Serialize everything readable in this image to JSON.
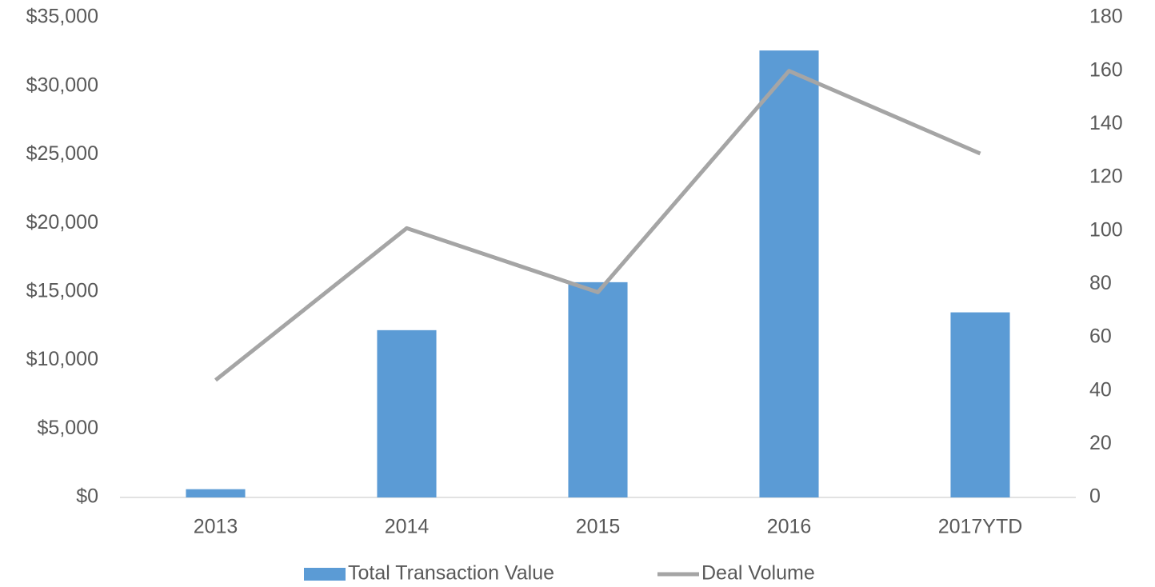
{
  "chart_data": {
    "type": "bar_line",
    "categories": [
      "2013",
      "2014",
      "2015",
      "2016",
      "2017YTD"
    ],
    "series": [
      {
        "name": "Total Transaction Value",
        "type": "bar",
        "color": "#5b9bd5",
        "values": [
          600,
          12200,
          15700,
          32600,
          13500
        ]
      },
      {
        "name": "Deal Volume",
        "type": "line",
        "axis": "y2",
        "color": "#a5a5a5",
        "values": [
          44,
          101,
          77,
          160,
          129
        ]
      }
    ],
    "ylim": [
      0,
      35000
    ],
    "yticks": [
      {
        "value": 0,
        "label": "$0"
      },
      {
        "value": 5000,
        "label": "$5,000"
      },
      {
        "value": 10000,
        "label": "$10,000"
      },
      {
        "value": 15000,
        "label": "$15,000"
      },
      {
        "value": 20000,
        "label": "$20,000"
      },
      {
        "value": 25000,
        "label": "$25,000"
      },
      {
        "value": 30000,
        "label": "$30,000"
      },
      {
        "value": 35000,
        "label": "$35,000"
      }
    ],
    "y2lim": [
      0,
      180
    ],
    "y2ticks": [
      0,
      20,
      40,
      60,
      80,
      100,
      120,
      140,
      160,
      180
    ],
    "grid": false,
    "legend": "bottom"
  }
}
